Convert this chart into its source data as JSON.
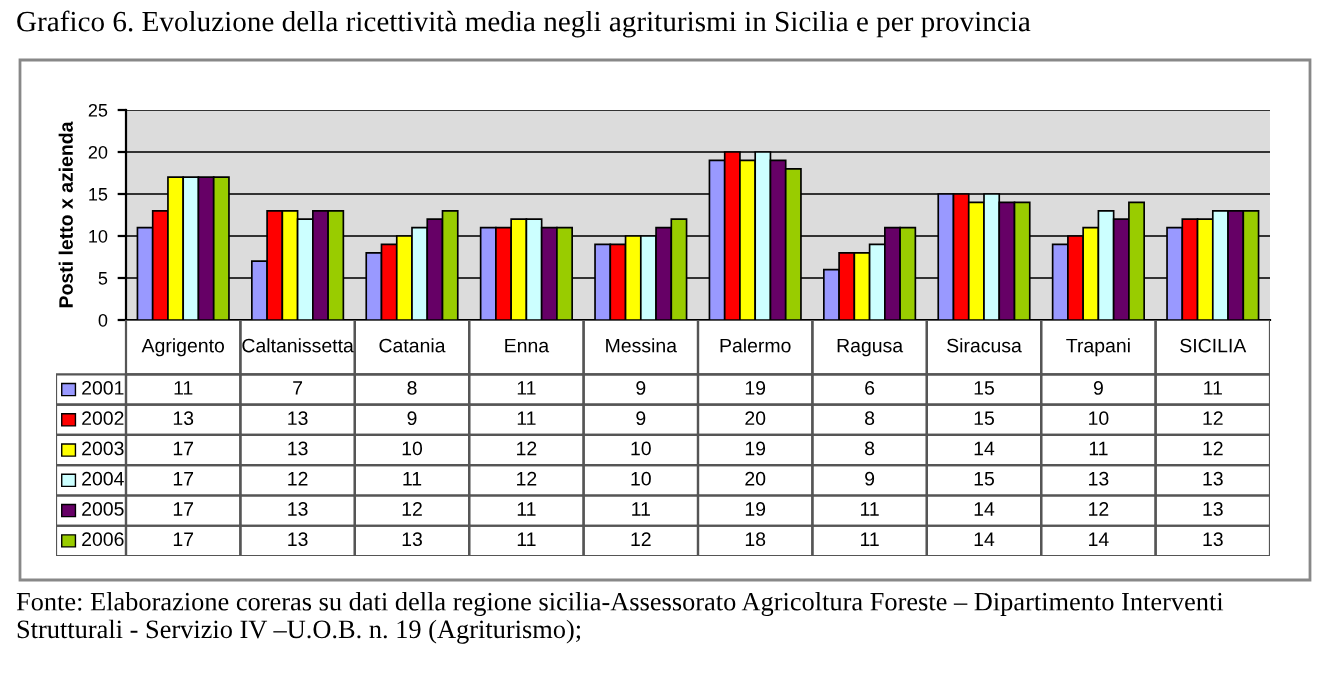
{
  "chart_data": {
    "type": "bar",
    "title": "Grafico 6. Evoluzione della ricettività media negli agriturismi in Sicilia e per provincia",
    "ylabel": "Posti letto x azienda",
    "categories": [
      "Agrigento",
      "Caltanissetta",
      "Catania",
      "Enna",
      "Messina",
      "Palermo",
      "Ragusa",
      "Siracusa",
      "Trapani",
      "SICILIA"
    ],
    "series": [
      {
        "name": "2001",
        "color": "#9999ff",
        "values": [
          11,
          7,
          8,
          11,
          9,
          19,
          6,
          15,
          9,
          11
        ]
      },
      {
        "name": "2002",
        "color": "#ff0000",
        "values": [
          13,
          13,
          9,
          11,
          9,
          20,
          8,
          15,
          10,
          12
        ]
      },
      {
        "name": "2003",
        "color": "#ffff00",
        "values": [
          17,
          13,
          10,
          12,
          10,
          19,
          8,
          14,
          11,
          12
        ]
      },
      {
        "name": "2004",
        "color": "#ccffff",
        "values": [
          17,
          12,
          11,
          12,
          10,
          20,
          9,
          15,
          13,
          13
        ]
      },
      {
        "name": "2005",
        "color": "#660066",
        "values": [
          17,
          13,
          12,
          11,
          11,
          19,
          11,
          14,
          12,
          13
        ]
      },
      {
        "name": "2006",
        "color": "#99cc00",
        "values": [
          17,
          13,
          13,
          11,
          12,
          18,
          11,
          14,
          14,
          13
        ]
      }
    ],
    "ylim": [
      0,
      25
    ],
    "yticks": [
      0,
      5,
      10,
      15,
      20,
      25
    ],
    "grid": "y",
    "legend": "bottom left",
    "data_labels": true,
    "annotations": [
      "Fonte: Elaborazione coreras su dati della regione sicilia-Assessorato Agricoltura Foreste – Dipartimento Interventi Strutturali - Servizio IV –U.O.B. n. 19 (Agriturismo);"
    ]
  }
}
